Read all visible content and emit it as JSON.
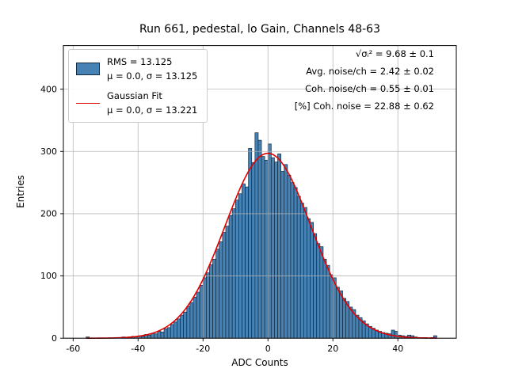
{
  "chart_data": {
    "type": "bar",
    "subtype": "histogram-with-gaussian-fit",
    "title": "Run 661, pedestal, lo Gain, Channels 48-63",
    "xlabel": "ADC Counts",
    "ylabel": "Entries",
    "xlim": [
      -63,
      58
    ],
    "ylim": [
      0,
      470
    ],
    "xticks": [
      -60,
      -40,
      -20,
      0,
      20,
      40
    ],
    "yticks": [
      0,
      100,
      200,
      300,
      400
    ],
    "grid": true,
    "bar_color": "#4682b4",
    "bar_edge_color": "#13293f",
    "fit_color": "#e50000",
    "grid_color": "#b0b0b0",
    "bins": {
      "start": -56,
      "width": 1,
      "counts": [
        2,
        0,
        0,
        0,
        0,
        0,
        0,
        0,
        0,
        1,
        0,
        2,
        1,
        2,
        3,
        2,
        4,
        3,
        6,
        5,
        8,
        7,
        11,
        10,
        15,
        17,
        22,
        26,
        31,
        37,
        42,
        51,
        57,
        66,
        74,
        85,
        97,
        105,
        118,
        127,
        143,
        155,
        170,
        180,
        197,
        208,
        222,
        232,
        248,
        243,
        305,
        282,
        330,
        318,
        292,
        286,
        312,
        290,
        283,
        296,
        268,
        279,
        262,
        250,
        242,
        228,
        217,
        210,
        192,
        186,
        168,
        152,
        147,
        127,
        117,
        102,
        97,
        82,
        76,
        64,
        59,
        50,
        46,
        37,
        33,
        28,
        23,
        19,
        16,
        13,
        11,
        9,
        8,
        7,
        13,
        11,
        5,
        4,
        3,
        5,
        4,
        2,
        1,
        1,
        1,
        0,
        1,
        4
      ]
    },
    "fit": {
      "mu": 0.0,
      "sigma": 13.221,
      "amplitude": 297
    }
  },
  "legend": {
    "entries": [
      {
        "swatch": "histogram-patch",
        "line1": "RMS = 13.125",
        "line2": "μ = 0.0, σ = 13.125"
      },
      {
        "swatch": "fit-line",
        "line1": "Gaussian Fit",
        "line2": "μ = 0.0, σ = 13.221"
      }
    ]
  },
  "stats": {
    "lines": [
      "√σᵢ² = 9.68 ± 0.1",
      "Avg. noise/ch = 2.42 ± 0.02",
      "Coh. noise/ch = 0.55 ± 0.01",
      "[%] Coh. noise = 22.88 ± 0.62"
    ]
  }
}
